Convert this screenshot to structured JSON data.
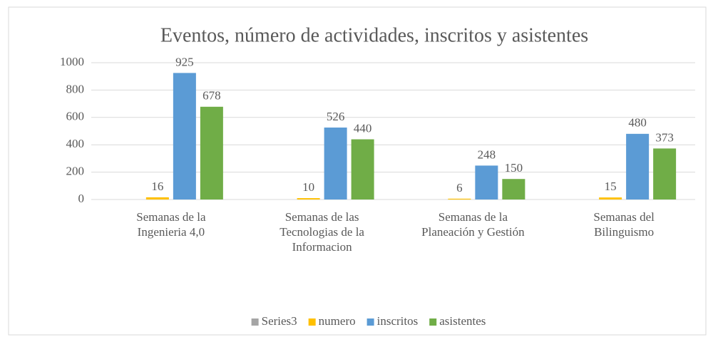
{
  "chart_data": {
    "type": "bar",
    "title": "Eventos, número de actividades, inscritos y asistentes",
    "categories": [
      "Semanas de la Ingenieria 4,0",
      "Semanas de las Tecnologias de la Informacion",
      "Semanas de la Planeación y Gestión",
      "Semanas del Bilinguismo"
    ],
    "series": [
      {
        "name": "Series3",
        "color": "#a5a5a5",
        "values": [
          null,
          null,
          null,
          null
        ]
      },
      {
        "name": "numero",
        "color": "#ffc000",
        "values": [
          16,
          10,
          6,
          15
        ]
      },
      {
        "name": "inscritos",
        "color": "#5b9bd5",
        "values": [
          925,
          526,
          248,
          480
        ]
      },
      {
        "name": "asistentes",
        "color": "#70ad47",
        "values": [
          678,
          440,
          150,
          373
        ]
      }
    ],
    "ylim": [
      0,
      1000
    ],
    "yticks": [
      0,
      200,
      400,
      600,
      800,
      1000
    ],
    "grid": true,
    "legend": "bottom"
  }
}
